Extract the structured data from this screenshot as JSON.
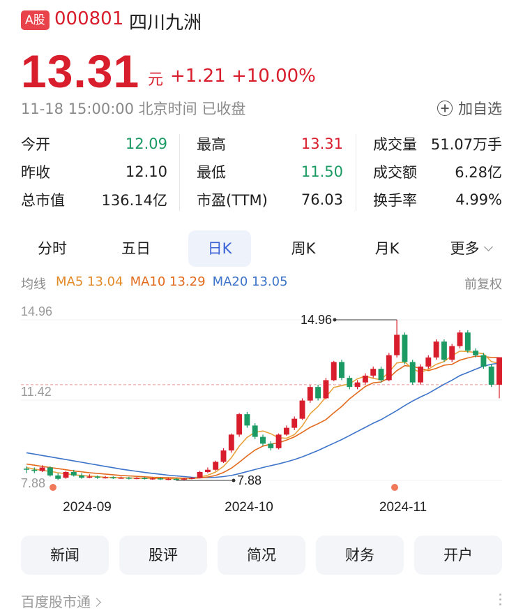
{
  "header": {
    "market_badge": "A股",
    "code": "000801",
    "name": "四川九洲",
    "price": "13.31",
    "unit": "元",
    "change": "+1.21",
    "change_pct": "+10.00%",
    "status_line": "11-18 15:00:00 北京时间 已收盘",
    "add_watch": "加自选"
  },
  "stats": [
    [
      {
        "label": "今开",
        "value": "12.09",
        "color": "green"
      },
      {
        "label": "昨收",
        "value": "12.10",
        "color": "normal"
      },
      {
        "label": "总市值",
        "value": "136.14亿",
        "color": "normal"
      }
    ],
    [
      {
        "label": "最高",
        "value": "13.31",
        "color": "red"
      },
      {
        "label": "最低",
        "value": "11.50",
        "color": "green"
      },
      {
        "label": "市盈(TTM)",
        "value": "76.03",
        "color": "normal"
      }
    ],
    [
      {
        "label": "成交量",
        "value": "51.07万手",
        "color": "normal"
      },
      {
        "label": "成交额",
        "value": "6.28亿",
        "color": "normal"
      },
      {
        "label": "换手率",
        "value": "4.99%",
        "color": "normal"
      }
    ]
  ],
  "tabs": [
    "分时",
    "五日",
    "日K",
    "周K",
    "月K",
    "更多"
  ],
  "active_tab": "日K",
  "ma_legend": {
    "label": "均线",
    "ma5": "MA5 13.04",
    "ma10": "MA10 13.29",
    "ma20": "MA20 13.05",
    "adjust": "前复权"
  },
  "colors": {
    "up": "#d81e2c",
    "down": "#1b9a63",
    "ma5": "#e8a23b",
    "ma10": "#e26a1d",
    "ma20": "#3d74c9"
  },
  "chart_data": {
    "type": "candlestick",
    "y_ticks": [
      "14.96",
      "11.42",
      "7.88"
    ],
    "ylim": [
      7.88,
      14.96
    ],
    "x_ticks": [
      "2024-09",
      "2024-10",
      "2024-11"
    ],
    "annotations": {
      "high": "14.96",
      "low": "7.88"
    },
    "candles": [
      [
        8.4,
        8.35,
        8.5,
        8.2
      ],
      [
        8.35,
        8.3,
        8.45,
        8.2
      ],
      [
        8.3,
        8.45,
        8.55,
        8.25
      ],
      [
        8.45,
        8.1,
        8.5,
        8.05
      ],
      [
        8.1,
        7.95,
        8.2,
        7.9
      ],
      [
        8.0,
        8.25,
        8.3,
        7.95
      ],
      [
        8.25,
        8.1,
        8.35,
        8.05
      ],
      [
        8.1,
        8.0,
        8.2,
        7.95
      ],
      [
        8.0,
        8.05,
        8.15,
        7.98
      ],
      [
        8.05,
        8.0,
        8.1,
        7.95
      ],
      [
        8.0,
        8.02,
        8.08,
        7.96
      ],
      [
        8.02,
        7.98,
        8.06,
        7.94
      ],
      [
        7.98,
        8.0,
        8.05,
        7.95
      ],
      [
        8.0,
        7.96,
        8.04,
        7.92
      ],
      [
        7.96,
        7.99,
        8.03,
        7.93
      ],
      [
        7.99,
        7.95,
        8.02,
        7.92
      ],
      [
        7.95,
        7.97,
        8.01,
        7.91
      ],
      [
        7.97,
        7.93,
        8.0,
        7.9
      ],
      [
        7.93,
        7.95,
        7.99,
        7.89
      ],
      [
        7.95,
        7.92,
        7.98,
        7.88
      ],
      [
        7.92,
        7.96,
        8.0,
        7.89
      ],
      [
        7.96,
        7.99,
        8.03,
        7.93
      ],
      [
        7.99,
        8.25,
        8.3,
        7.97
      ],
      [
        8.25,
        8.35,
        8.45,
        8.2
      ],
      [
        8.35,
        8.7,
        8.75,
        8.3
      ],
      [
        8.7,
        9.2,
        9.3,
        8.65
      ],
      [
        9.2,
        9.9,
        9.95,
        9.1
      ],
      [
        9.9,
        10.8,
        10.85,
        9.8
      ],
      [
        10.8,
        10.3,
        10.9,
        10.2
      ],
      [
        10.3,
        9.8,
        10.4,
        9.7
      ],
      [
        9.8,
        9.5,
        9.9,
        9.4
      ],
      [
        9.5,
        9.3,
        9.6,
        9.2
      ],
      [
        9.3,
        9.9,
        9.95,
        9.25
      ],
      [
        9.9,
        10.2,
        10.3,
        9.85
      ],
      [
        10.2,
        10.6,
        10.7,
        10.1
      ],
      [
        10.6,
        11.4,
        11.5,
        10.55
      ],
      [
        11.4,
        12.0,
        12.1,
        11.3
      ],
      [
        12.0,
        11.5,
        12.1,
        11.4
      ],
      [
        11.5,
        12.3,
        12.4,
        11.45
      ],
      [
        12.3,
        13.1,
        13.15,
        12.25
      ],
      [
        13.1,
        12.4,
        13.2,
        12.3
      ],
      [
        12.4,
        12.0,
        12.5,
        11.9
      ],
      [
        12.0,
        12.2,
        12.3,
        11.9
      ],
      [
        12.2,
        12.5,
        12.6,
        12.1
      ],
      [
        12.5,
        12.8,
        12.9,
        12.4
      ],
      [
        12.8,
        12.3,
        12.9,
        12.2
      ],
      [
        12.3,
        13.4,
        13.5,
        12.25
      ],
      [
        13.4,
        14.3,
        14.96,
        13.3
      ],
      [
        14.3,
        13.1,
        14.4,
        13.0
      ],
      [
        13.1,
        12.2,
        13.2,
        12.1
      ],
      [
        12.2,
        12.9,
        13.0,
        12.1
      ],
      [
        12.9,
        13.3,
        13.4,
        12.8
      ],
      [
        13.3,
        14.0,
        14.1,
        13.2
      ],
      [
        14.0,
        13.2,
        14.1,
        13.1
      ],
      [
        13.2,
        13.8,
        13.9,
        13.1
      ],
      [
        13.8,
        14.4,
        14.5,
        13.7
      ],
      [
        14.4,
        13.6,
        14.5,
        13.5
      ],
      [
        13.6,
        13.4,
        13.7,
        13.3
      ],
      [
        13.4,
        12.9,
        13.5,
        12.8
      ],
      [
        12.9,
        12.1,
        13.0,
        12.0
      ],
      [
        12.1,
        13.31,
        13.31,
        11.5
      ]
    ],
    "ma5": [
      8.45,
      8.38,
      8.32,
      8.28,
      8.22,
      8.18,
      8.13,
      8.1,
      8.07,
      8.05,
      8.02,
      8.01,
      8.0,
      7.99,
      7.98,
      7.97,
      7.97,
      7.96,
      7.96,
      7.95,
      7.95,
      7.96,
      8.03,
      8.11,
      8.25,
      8.5,
      8.88,
      9.39,
      9.78,
      10.0,
      10.06,
      9.94,
      9.76,
      9.74,
      9.9,
      10.28,
      10.82,
      11.14,
      11.56,
      11.98,
      12.06,
      12.14,
      12.36,
      12.48,
      12.38,
      12.32,
      12.66,
      13.06,
      13.1,
      12.8,
      12.64,
      12.78,
      13.0,
      13.12,
      13.38,
      13.58,
      13.56,
      13.52,
      13.46,
      13.12,
      13.04
    ],
    "ma10": [
      8.6,
      8.55,
      8.5,
      8.45,
      8.4,
      8.35,
      8.3,
      8.26,
      8.22,
      8.19,
      8.16,
      8.13,
      8.1,
      8.08,
      8.06,
      8.04,
      8.02,
      8.01,
      8.0,
      7.99,
      7.98,
      7.97,
      7.99,
      8.03,
      8.1,
      8.23,
      8.42,
      8.68,
      8.96,
      9.22,
      9.39,
      9.48,
      9.54,
      9.66,
      9.8,
      10.0,
      10.22,
      10.38,
      10.56,
      10.86,
      11.14,
      11.48,
      11.75,
      12.02,
      12.18,
      12.22,
      12.4,
      12.72,
      12.94,
      12.9,
      12.82,
      12.72,
      12.82,
      12.96,
      13.0,
      13.18,
      13.28,
      13.36,
      13.34,
      13.3,
      13.29
    ],
    "ma20": [
      9.1,
      9.04,
      8.98,
      8.92,
      8.86,
      8.8,
      8.74,
      8.68,
      8.62,
      8.56,
      8.5,
      8.44,
      8.38,
      8.33,
      8.28,
      8.23,
      8.19,
      8.15,
      8.11,
      8.08,
      8.05,
      8.02,
      8.01,
      8.01,
      8.02,
      8.05,
      8.1,
      8.18,
      8.27,
      8.36,
      8.45,
      8.53,
      8.61,
      8.7,
      8.8,
      8.92,
      9.06,
      9.2,
      9.36,
      9.52,
      9.68,
      9.86,
      10.04,
      10.22,
      10.4,
      10.56,
      10.76,
      10.96,
      11.18,
      11.38,
      11.56,
      11.72,
      11.92,
      12.12,
      12.3,
      12.5,
      12.64,
      12.78,
      12.92,
      13.0,
      13.05
    ]
  },
  "bottom_buttons": [
    "新闻",
    "股评",
    "简况",
    "财务",
    "开户"
  ],
  "footer": "百度股市通"
}
